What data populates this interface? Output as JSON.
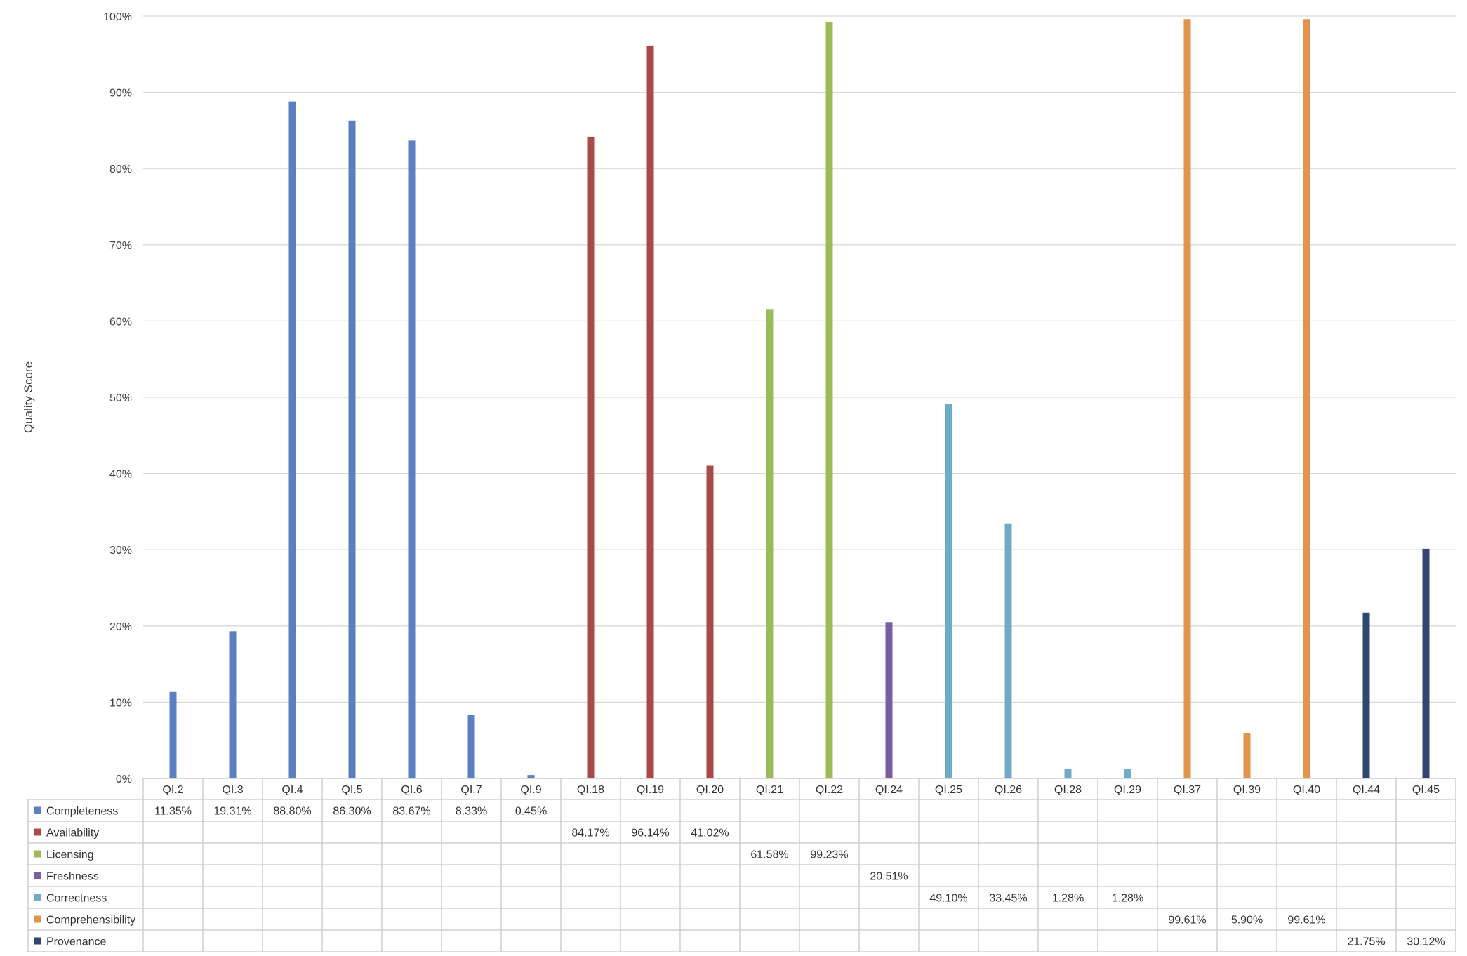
{
  "chart_data": {
    "type": "bar",
    "ylabel": "Quality Score",
    "ylim": [
      0,
      100
    ],
    "yticks": [
      "0%",
      "10%",
      "20%",
      "30%",
      "40%",
      "50%",
      "60%",
      "70%",
      "80%",
      "90%",
      "100%"
    ],
    "grid": true,
    "legend_placement": "data-table-left",
    "categories": [
      "QI.2",
      "QI.3",
      "QI.4",
      "QI.5",
      "QI.6",
      "QI.7",
      "QI.9",
      "QI.18",
      "QI.19",
      "QI.20",
      "QI.21",
      "QI.22",
      "QI.24",
      "QI.25",
      "QI.26",
      "QI.28",
      "QI.29",
      "QI.37",
      "QI.39",
      "QI.40",
      "QI.44",
      "QI.45"
    ],
    "series": [
      {
        "name": "Completeness",
        "color": "#5B7FC0",
        "values": [
          11.35,
          19.31,
          88.8,
          86.3,
          83.67,
          8.33,
          0.45,
          null,
          null,
          null,
          null,
          null,
          null,
          null,
          null,
          null,
          null,
          null,
          null,
          null,
          null,
          null
        ],
        "labels": [
          "11.35%",
          "19.31%",
          "88.80%",
          "86.30%",
          "83.67%",
          "8.33%",
          "0.45%",
          "",
          "",
          "",
          "",
          "",
          "",
          "",
          "",
          "",
          "",
          "",
          "",
          "",
          "",
          ""
        ]
      },
      {
        "name": "Availability",
        "color": "#A84A48",
        "values": [
          null,
          null,
          null,
          null,
          null,
          null,
          null,
          84.17,
          96.14,
          41.02,
          null,
          null,
          null,
          null,
          null,
          null,
          null,
          null,
          null,
          null,
          null,
          null
        ],
        "labels": [
          "",
          "",
          "",
          "",
          "",
          "",
          "",
          "84.17%",
          "96.14%",
          "41.02%",
          "",
          "",
          "",
          "",
          "",
          "",
          "",
          "",
          "",
          "",
          "",
          ""
        ]
      },
      {
        "name": "Licensing",
        "color": "#9BBB59",
        "values": [
          null,
          null,
          null,
          null,
          null,
          null,
          null,
          null,
          null,
          null,
          61.58,
          99.23,
          null,
          null,
          null,
          null,
          null,
          null,
          null,
          null,
          null,
          null
        ],
        "labels": [
          "",
          "",
          "",
          "",
          "",
          "",
          "",
          "",
          "",
          "",
          "61.58%",
          "99.23%",
          "",
          "",
          "",
          "",
          "",
          "",
          "",
          "",
          "",
          ""
        ]
      },
      {
        "name": "Freshness",
        "color": "#7A5FA0",
        "values": [
          null,
          null,
          null,
          null,
          null,
          null,
          null,
          null,
          null,
          null,
          null,
          null,
          20.51,
          null,
          null,
          null,
          null,
          null,
          null,
          null,
          null,
          null
        ],
        "labels": [
          "",
          "",
          "",
          "",
          "",
          "",
          "",
          "",
          "",
          "",
          "",
          "",
          "20.51%",
          "",
          "",
          "",
          "",
          "",
          "",
          "",
          "",
          ""
        ]
      },
      {
        "name": "Correctness",
        "color": "#6FAAC8",
        "values": [
          null,
          null,
          null,
          null,
          null,
          null,
          null,
          null,
          null,
          null,
          null,
          null,
          null,
          49.1,
          33.45,
          1.28,
          1.28,
          null,
          null,
          null,
          null,
          null
        ],
        "labels": [
          "",
          "",
          "",
          "",
          "",
          "",
          "",
          "",
          "",
          "",
          "",
          "",
          "",
          "49.10%",
          "33.45%",
          "1.28%",
          "1.28%",
          "",
          "",
          "",
          "",
          ""
        ]
      },
      {
        "name": "Comprehensibility",
        "color": "#E0944C",
        "values": [
          null,
          null,
          null,
          null,
          null,
          null,
          null,
          null,
          null,
          null,
          null,
          null,
          null,
          null,
          null,
          null,
          null,
          99.61,
          5.9,
          99.61,
          null,
          null
        ],
        "labels": [
          "",
          "",
          "",
          "",
          "",
          "",
          "",
          "",
          "",
          "",
          "",
          "",
          "",
          "",
          "",
          "",
          "",
          "99.61%",
          "5.90%",
          "99.61%",
          "",
          ""
        ]
      },
      {
        "name": "Provenance",
        "color": "#2F4673",
        "values": [
          null,
          null,
          null,
          null,
          null,
          null,
          null,
          null,
          null,
          null,
          null,
          null,
          null,
          null,
          null,
          null,
          null,
          null,
          null,
          null,
          21.75,
          30.12
        ],
        "labels": [
          "",
          "",
          "",
          "",
          "",
          "",
          "",
          "",
          "",
          "",
          "",
          "",
          "",
          "",
          "",
          "",
          "",
          "",
          "",
          "",
          "21.75%",
          "30.12%"
        ]
      }
    ]
  }
}
